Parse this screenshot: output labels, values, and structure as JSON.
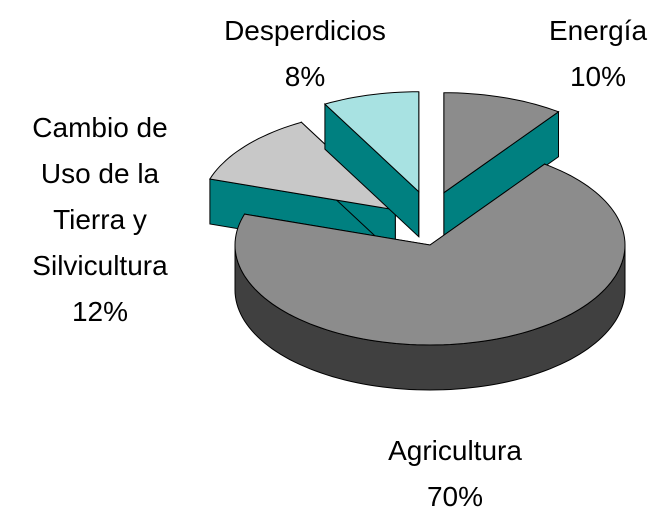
{
  "chart_data": {
    "type": "pie",
    "categories": [
      "Energía",
      "Agricultura",
      "Cambio de Uso de la Tierra y Silvicultura",
      "Desperdicios"
    ],
    "values": [
      10,
      70,
      12,
      8
    ],
    "value_labels": [
      "10%",
      "70%",
      "12%",
      "8%"
    ],
    "colors": [
      "#8c8c8c",
      "#8c8c8c",
      "#c8c8c8",
      "#a8e2e2"
    ],
    "side_colors": [
      "#008080",
      "#404040",
      "#008080",
      "#008080"
    ],
    "exploded": [
      true,
      false,
      true,
      true
    ]
  }
}
